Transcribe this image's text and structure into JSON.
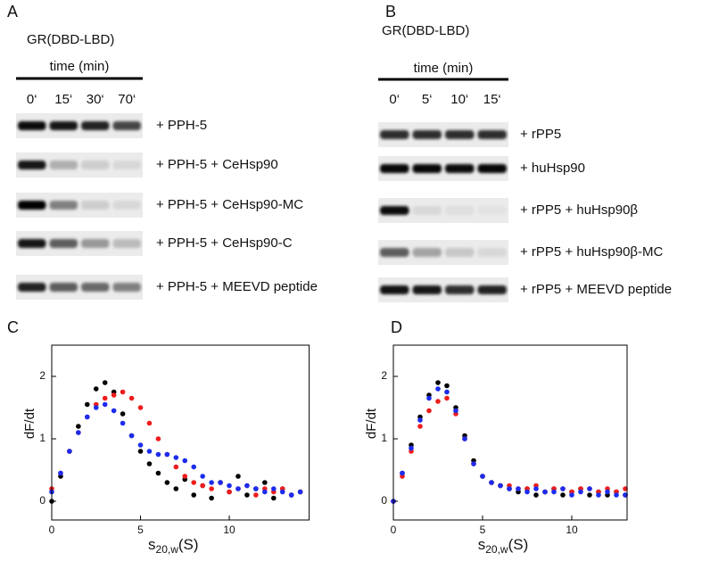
{
  "panels": [
    {
      "letter": "A",
      "protein": "GR(DBD-LBD)",
      "time_label": "time (min)",
      "times": [
        "0‘",
        "15‘",
        "30‘",
        "70‘"
      ],
      "rows": [
        "+ PPH-5",
        "+ PPH-5 + CeHsp90",
        "+ PPH-5 + CeHsp90-MC",
        "+ PPH-5 + CeHsp90-C",
        "+ PPH-5 + MEEVD peptide"
      ]
    },
    {
      "letter": "B",
      "protein": "GR(DBD-LBD)",
      "time_label": "time (min)",
      "times": [
        "0‘",
        "5‘",
        "10‘",
        "15‘"
      ],
      "rows": [
        "+ rPP5",
        "+ huHsp90",
        "+ rPP5 + huHsp90β",
        "+ rPP5 + huHsp90β-MC",
        "+ rPP5 + MEEVD peptide"
      ]
    }
  ],
  "chart_data": [
    {
      "type": "scatter",
      "panel": "C",
      "y_label": "dF/dt",
      "x_label": {
        "symbol": "s",
        "subscript": "20,w",
        "unit": "(S)"
      },
      "xlim": [
        0,
        14.5
      ],
      "ylim": [
        -0.3,
        2.5
      ],
      "xticks": [
        0,
        5,
        10
      ],
      "yticks": [
        0,
        1,
        2
      ],
      "x": [
        0,
        0.5,
        1,
        1.5,
        2,
        2.5,
        3,
        3.5,
        4,
        4.5,
        5,
        5.5,
        6,
        6.5,
        7,
        7.5,
        8,
        8.5,
        9,
        9.5,
        10,
        10.5,
        11,
        11.5,
        12,
        12.5,
        13,
        13.5,
        14
      ],
      "series": [
        {
          "color": "#000000",
          "values": [
            0,
            0.4,
            0.8,
            1.2,
            1.55,
            1.8,
            1.9,
            1.75,
            1.4,
            1.05,
            0.8,
            0.6,
            0.45,
            0.3,
            0.2,
            0.35,
            0.1,
            0.25,
            0.05,
            0.3,
            0.15,
            0.4,
            0.1,
            0.2,
            0.3,
            0.05,
            0.2,
            0.1,
            0.15
          ]
        },
        {
          "color": "#ee1c1c",
          "values": [
            0.2,
            0.45,
            0.8,
            1.1,
            1.35,
            1.55,
            1.65,
            1.7,
            1.75,
            1.65,
            1.5,
            1.25,
            1.0,
            0.75,
            0.55,
            0.4,
            0.3,
            0.25,
            0.2,
            0.3,
            0.15,
            0.2,
            0.25,
            0.1,
            0.2,
            0.15,
            0.2,
            0.1,
            0.15
          ]
        },
        {
          "color": "#1c2cee",
          "values": [
            0.15,
            0.45,
            0.8,
            1.1,
            1.35,
            1.5,
            1.55,
            1.45,
            1.25,
            1.05,
            0.9,
            0.8,
            0.75,
            0.75,
            0.7,
            0.65,
            0.55,
            0.4,
            0.3,
            0.3,
            0.25,
            0.2,
            0.25,
            0.2,
            0.15,
            0.2,
            0.15,
            0.1,
            0.15
          ]
        }
      ]
    },
    {
      "type": "scatter",
      "panel": "D",
      "y_label": "dF/dt",
      "x_label": {
        "symbol": "s",
        "subscript": "20,w",
        "unit": "(S)"
      },
      "xlim": [
        0,
        13.1
      ],
      "ylim": [
        -0.3,
        2.5
      ],
      "xticks": [
        0,
        5,
        10
      ],
      "yticks": [
        0,
        1,
        2
      ],
      "x": [
        0,
        0.5,
        1,
        1.5,
        2,
        2.5,
        3,
        3.5,
        4,
        4.5,
        5,
        5.5,
        6,
        6.5,
        7,
        7.5,
        8,
        8.5,
        9,
        9.5,
        10,
        10.5,
        11,
        11.5,
        12,
        12.5,
        13
      ],
      "series": [
        {
          "color": "#000000",
          "values": [
            0,
            0.45,
            0.9,
            1.35,
            1.7,
            1.9,
            1.85,
            1.5,
            1.05,
            0.65,
            0.4,
            0.3,
            0.25,
            0.2,
            0.15,
            0.2,
            0.1,
            0.15,
            0.2,
            0.1,
            0.15,
            0.2,
            0.1,
            0.15,
            0.1,
            0.15,
            0.1
          ]
        },
        {
          "color": "#ee1c1c",
          "values": [
            0,
            0.4,
            0.8,
            1.2,
            1.45,
            1.6,
            1.65,
            1.4,
            1.0,
            0.6,
            0.4,
            0.3,
            0.25,
            0.25,
            0.2,
            0.2,
            0.25,
            0.15,
            0.2,
            0.2,
            0.15,
            0.2,
            0.2,
            0.15,
            0.2,
            0.15,
            0.2
          ]
        },
        {
          "color": "#1c2cee",
          "values": [
            0,
            0.45,
            0.85,
            1.3,
            1.65,
            1.8,
            1.75,
            1.45,
            1.0,
            0.6,
            0.4,
            0.3,
            0.25,
            0.2,
            0.2,
            0.15,
            0.2,
            0.15,
            0.15,
            0.2,
            0.1,
            0.15,
            0.2,
            0.1,
            0.15,
            0.1,
            0.1
          ]
        }
      ]
    }
  ]
}
